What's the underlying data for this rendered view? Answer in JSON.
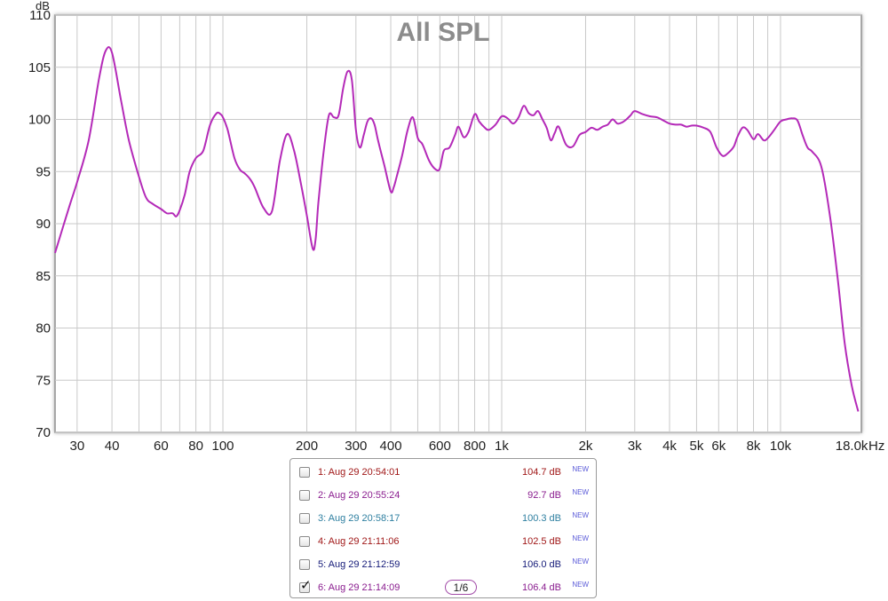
{
  "chart_data": {
    "type": "line",
    "title": "All SPL",
    "ylabel": "dB",
    "xlabel": "Hz",
    "x_scale": "log",
    "xlim": [
      25,
      19500
    ],
    "ylim": [
      70,
      110
    ],
    "grid": true,
    "y_ticks": [
      70,
      75,
      80,
      85,
      90,
      95,
      100,
      105,
      110
    ],
    "x_tick_labels": [
      {
        "value": 30,
        "label": "30"
      },
      {
        "value": 40,
        "label": "40"
      },
      {
        "value": 60,
        "label": "60"
      },
      {
        "value": 80,
        "label": "80"
      },
      {
        "value": 100,
        "label": "100"
      },
      {
        "value": 200,
        "label": "200"
      },
      {
        "value": 300,
        "label": "300"
      },
      {
        "value": 400,
        "label": "400"
      },
      {
        "value": 600,
        "label": "600"
      },
      {
        "value": 800,
        "label": "800"
      },
      {
        "value": 1000,
        "label": "1k"
      },
      {
        "value": 2000,
        "label": "2k"
      },
      {
        "value": 3000,
        "label": "3k"
      },
      {
        "value": 4000,
        "label": "4k"
      },
      {
        "value": 5000,
        "label": "5k"
      },
      {
        "value": 6000,
        "label": "6k"
      },
      {
        "value": 8000,
        "label": "8k"
      },
      {
        "value": 10000,
        "label": "10k"
      },
      {
        "value": 18000,
        "label": "18.0k"
      }
    ],
    "series": [
      {
        "color": "#b42ab8",
        "x": [
          25,
          28,
          30,
          33,
          36,
          38,
          40,
          43,
          46,
          50,
          53,
          56,
          60,
          63,
          66,
          68,
          70,
          73,
          76,
          80,
          85,
          90,
          95,
          98,
          100,
          104,
          110,
          115,
          120,
          125,
          130,
          140,
          150,
          160,
          170,
          180,
          190,
          200,
          210,
          215,
          220,
          230,
          240,
          250,
          260,
          270,
          280,
          290,
          300,
          310,
          320,
          330,
          340,
          350,
          360,
          380,
          400,
          410,
          420,
          440,
          460,
          480,
          500,
          520,
          550,
          580,
          600,
          620,
          650,
          680,
          700,
          730,
          760,
          800,
          830,
          870,
          900,
          950,
          1000,
          1050,
          1100,
          1150,
          1200,
          1250,
          1300,
          1350,
          1400,
          1450,
          1500,
          1550,
          1600,
          1700,
          1800,
          1900,
          2000,
          2100,
          2200,
          2300,
          2400,
          2500,
          2600,
          2700,
          2800,
          2900,
          3000,
          3200,
          3400,
          3600,
          3800,
          4000,
          4200,
          4400,
          4600,
          4800,
          5000,
          5300,
          5600,
          5900,
          6200,
          6500,
          6800,
          7000,
          7300,
          7600,
          8000,
          8300,
          8700,
          9000,
          9500,
          10000,
          10500,
          11000,
          11500,
          12000,
          12500,
          13000,
          14000,
          15000,
          16000,
          17000,
          18000,
          19000
        ],
        "values": [
          87.2,
          91.5,
          94.0,
          98.0,
          104.0,
          106.6,
          106.4,
          102.0,
          98.0,
          94.5,
          92.5,
          91.9,
          91.4,
          91.0,
          91.0,
          90.7,
          91.3,
          92.8,
          95.0,
          96.3,
          97.0,
          99.5,
          100.6,
          100.5,
          100.2,
          99.0,
          96.3,
          95.2,
          94.8,
          94.3,
          93.5,
          91.5,
          91.2,
          96.0,
          98.6,
          97.0,
          94.0,
          90.8,
          87.6,
          88.5,
          92.0,
          97.0,
          100.4,
          100.2,
          100.4,
          103.0,
          104.6,
          103.8,
          99.0,
          97.3,
          98.5,
          99.8,
          100.1,
          99.5,
          98.0,
          95.5,
          93.1,
          93.5,
          94.5,
          96.6,
          99.0,
          100.2,
          98.2,
          97.6,
          96.0,
          95.2,
          95.3,
          97.0,
          97.3,
          98.5,
          99.3,
          98.3,
          98.8,
          100.5,
          99.8,
          99.2,
          99.0,
          99.5,
          100.3,
          100.1,
          99.6,
          100.2,
          101.3,
          100.6,
          100.4,
          100.8,
          100.0,
          99.2,
          98.0,
          98.7,
          99.3,
          97.6,
          97.4,
          98.5,
          98.8,
          99.2,
          99.0,
          99.3,
          99.5,
          100.0,
          99.6,
          99.7,
          100.0,
          100.4,
          100.8,
          100.5,
          100.3,
          100.2,
          99.9,
          99.6,
          99.5,
          99.5,
          99.3,
          99.4,
          99.4,
          99.2,
          98.8,
          97.3,
          96.5,
          96.8,
          97.4,
          98.3,
          99.2,
          99.0,
          98.1,
          98.6,
          98.0,
          98.2,
          99.0,
          99.8,
          100.0,
          100.1,
          99.9,
          98.5,
          97.3,
          96.9,
          95.5,
          91.0,
          85.0,
          78.5,
          74.5,
          72.0
        ]
      }
    ]
  },
  "legend": {
    "entries": [
      {
        "label": "1: Aug 29 20:54:01",
        "value": "104.7 dB",
        "badge": "NEW",
        "color": "#a01818",
        "checked": false
      },
      {
        "label": "2: Aug 29 20:55:24",
        "value": "92.7 dB",
        "badge": "NEW",
        "color": "#8a1d8f",
        "checked": false
      },
      {
        "label": "3: Aug 29 20:58:17",
        "value": "100.3 dB",
        "badge": "NEW",
        "color": "#2e7fa0",
        "checked": false
      },
      {
        "label": "4: Aug 29 21:11:06",
        "value": "102.5 dB",
        "badge": "NEW",
        "color": "#a01818",
        "checked": false
      },
      {
        "label": "5: Aug 29 21:12:59",
        "value": "106.0 dB",
        "badge": "NEW",
        "color": "#141a78",
        "checked": false
      },
      {
        "label": "6: Aug 29 21:14:09",
        "value": "106.4 dB",
        "badge": "NEW",
        "color": "#8a1d8f",
        "checked": true
      }
    ],
    "smoothing_label": "1/6",
    "check_mark": "✓"
  }
}
